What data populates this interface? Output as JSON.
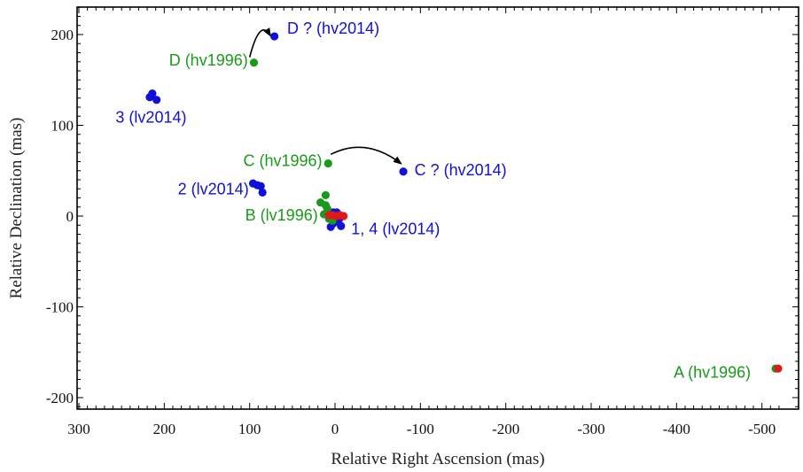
{
  "chart_data": {
    "type": "scatter",
    "title": "",
    "xlabel": "Relative Right Ascension (mas)",
    "ylabel": "Relative Declination (mas)",
    "xlim": [
      300,
      -520
    ],
    "ylim": [
      -210,
      230
    ],
    "x_reversed": true,
    "x_ticks": [
      300,
      200,
      100,
      0,
      -100,
      -200,
      -300,
      -400,
      -500
    ],
    "y_ticks": [
      -200,
      -100,
      0,
      100,
      200
    ],
    "grid": false,
    "legend": "none",
    "colors": {
      "hv1996": "#1a9a1a",
      "lv1996": "#1a9a1a",
      "lv2014": "#1010d8",
      "hv2014": "#1010d8",
      "reference": "#e01818"
    },
    "series": [
      {
        "color_key": "lv2014",
        "points": [
          {
            "x": 217,
            "y": 131
          },
          {
            "x": 214,
            "y": 135
          },
          {
            "x": 209,
            "y": 128
          },
          {
            "x": 96,
            "y": 36
          },
          {
            "x": 91,
            "y": 34
          },
          {
            "x": 87,
            "y": 33
          },
          {
            "x": 85,
            "y": 26
          },
          {
            "x": 2,
            "y": 4
          },
          {
            "x": -2,
            "y": 4
          },
          {
            "x": 4,
            "y": -2
          },
          {
            "x": -5,
            "y": -3
          },
          {
            "x": 2,
            "y": -8
          },
          {
            "x": 5,
            "y": -12
          },
          {
            "x": -7,
            "y": -11
          },
          {
            "x": -3,
            "y": -6
          }
        ]
      },
      {
        "color_key": "hv2014",
        "points": [
          {
            "x": 71,
            "y": 198
          },
          {
            "x": -80,
            "y": 49
          }
        ]
      },
      {
        "color_key": "hv1996",
        "points": [
          {
            "x": 95,
            "y": 169
          },
          {
            "x": 8,
            "y": 58
          },
          {
            "x": -516,
            "y": -168
          }
        ]
      },
      {
        "color_key": "lv1996",
        "points": [
          {
            "x": 11,
            "y": 23
          },
          {
            "x": 17,
            "y": 15
          },
          {
            "x": 11,
            "y": 12
          },
          {
            "x": 13,
            "y": 2
          },
          {
            "x": 7,
            "y": -3
          },
          {
            "x": 3,
            "y": -5
          },
          {
            "x": 9,
            "y": 8
          }
        ]
      },
      {
        "color_key": "reference",
        "points": [
          {
            "x": 7,
            "y": 1
          },
          {
            "x": 3,
            "y": 1
          },
          {
            "x": -2,
            "y": 0
          },
          {
            "x": -6,
            "y": 1
          },
          {
            "x": -10,
            "y": 0
          },
          {
            "x": -519,
            "y": -168
          }
        ]
      }
    ],
    "annotations": [
      {
        "text": "D ? (hv2014)",
        "color_key": "hv2014",
        "x": 56,
        "y": 201,
        "anchor": "start"
      },
      {
        "text": "D (hv1996)",
        "color_key": "hv1996",
        "x": 102,
        "y": 166,
        "anchor": "end"
      },
      {
        "text": "3 (lv2014)",
        "color_key": "lv2014",
        "x": 257,
        "y": 103,
        "anchor": "start"
      },
      {
        "text": "C (hv1996)",
        "color_key": "hv1996",
        "x": 15,
        "y": 55,
        "anchor": "end"
      },
      {
        "text": "C ? (hv2014)",
        "color_key": "hv2014",
        "x": -93,
        "y": 45,
        "anchor": "start"
      },
      {
        "text": "2 (lv2014)",
        "color_key": "lv2014",
        "x": 101,
        "y": 24,
        "anchor": "end"
      },
      {
        "text": "B (lv1996)",
        "color_key": "lv1996",
        "x": 20,
        "y": -5,
        "anchor": "end"
      },
      {
        "text": "1, 4 (lv2014)",
        "color_key": "lv2014",
        "x": -19,
        "y": -20,
        "anchor": "start"
      },
      {
        "text": "A (hv1996)",
        "color_key": "hv1996",
        "x": -487,
        "y": -178,
        "anchor": "end"
      }
    ],
    "arrows": [
      {
        "from": {
          "x": 100,
          "y": 175
        },
        "to": {
          "x": 76,
          "y": 199
        }
      },
      {
        "from": {
          "x": 5,
          "y": 68
        },
        "to": {
          "x": -77,
          "y": 58
        }
      }
    ]
  }
}
